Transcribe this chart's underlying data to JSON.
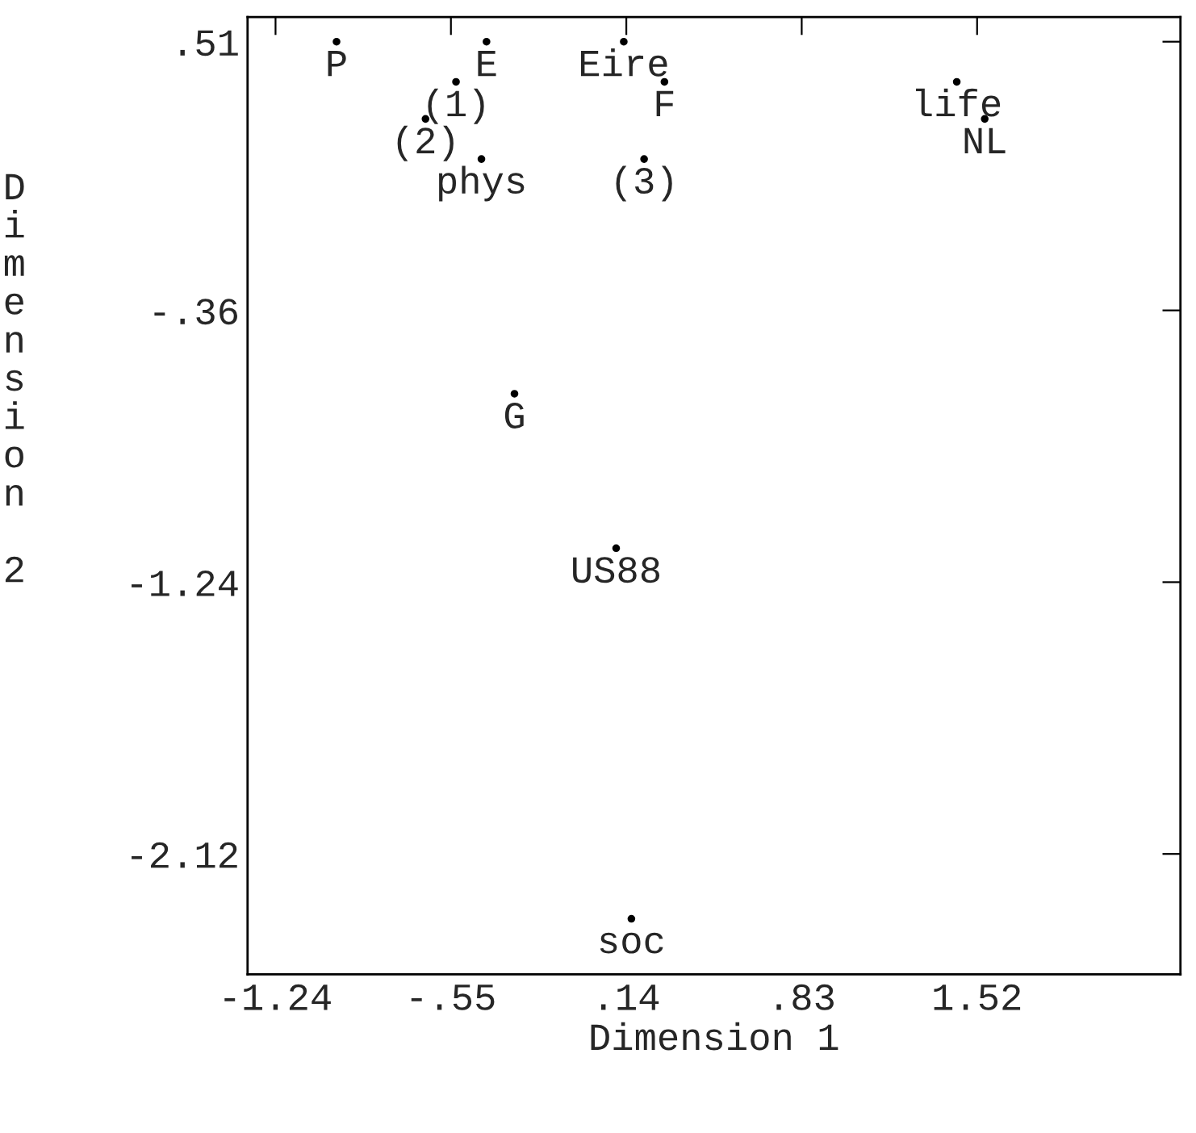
{
  "chart_data": {
    "type": "scatter",
    "xlabel": "Dimension 1",
    "ylabel": "Dimension 2",
    "xlim": [
      -1.35,
      2.32
    ],
    "ylim": [
      -2.51,
      0.59
    ],
    "xticks": [
      {
        "value": -1.24,
        "label": "-1.24"
      },
      {
        "value": -0.55,
        "label": "-.55"
      },
      {
        "value": 0.14,
        "label": ".14"
      },
      {
        "value": 0.83,
        "label": ".83"
      },
      {
        "value": 1.52,
        "label": "1.52"
      }
    ],
    "yticks": [
      {
        "value": 0.51,
        "label": ".51"
      },
      {
        "value": -0.36,
        "label": "-.36"
      },
      {
        "value": -1.24,
        "label": "-1.24"
      },
      {
        "value": -2.12,
        "label": "-2.12"
      }
    ],
    "grid": false,
    "marker": "circle",
    "series": [
      {
        "color": "#000000",
        "x": [
          -1.0,
          -0.41,
          0.13,
          -0.53,
          0.29,
          1.44,
          -0.65,
          1.55,
          -0.43,
          0.21,
          -0.3,
          0.1,
          0.16
        ],
        "values": [
          0.51,
          0.51,
          0.51,
          0.38,
          0.38,
          0.38,
          0.26,
          0.26,
          0.13,
          0.13,
          -0.63,
          -1.13,
          -2.33
        ]
      }
    ],
    "annotations": [
      {
        "text": "P",
        "x": -1.0,
        "y": 0.51
      },
      {
        "text": "E",
        "x": -0.41,
        "y": 0.51
      },
      {
        "text": "Eire",
        "x": 0.13,
        "y": 0.51
      },
      {
        "text": "(1)",
        "x": -0.53,
        "y": 0.38
      },
      {
        "text": "F",
        "x": 0.29,
        "y": 0.38
      },
      {
        "text": "life",
        "x": 1.44,
        "y": 0.38
      },
      {
        "text": "(2)",
        "x": -0.65,
        "y": 0.26
      },
      {
        "text": "NL",
        "x": 1.55,
        "y": 0.26
      },
      {
        "text": "phys",
        "x": -0.43,
        "y": 0.13
      },
      {
        "text": "(3)",
        "x": 0.21,
        "y": 0.13
      },
      {
        "text": "G",
        "x": -0.3,
        "y": -0.63
      },
      {
        "text": "US88",
        "x": 0.1,
        "y": -1.13
      },
      {
        "text": "soc",
        "x": 0.16,
        "y": -2.33
      }
    ]
  }
}
